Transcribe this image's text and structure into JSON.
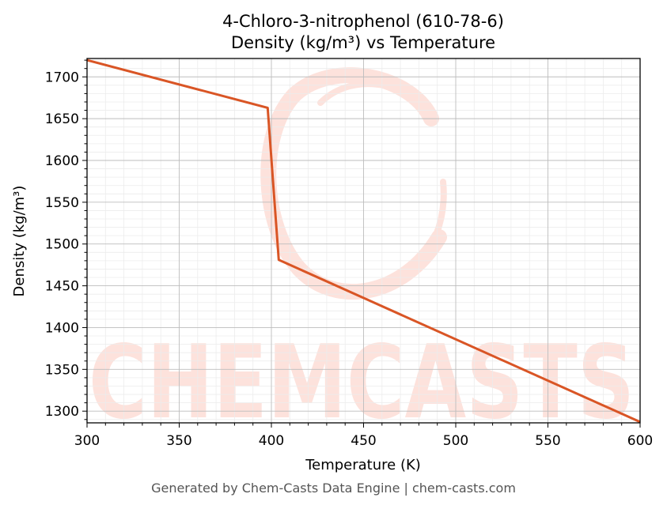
{
  "chart_data": {
    "type": "line",
    "title_line1": "4-Chloro-3-nitrophenol (610-78-6)",
    "title_line2": "Density (kg/m³) vs Temperature",
    "xlabel": "Temperature (K)",
    "ylabel": "Density (kg/m³)",
    "xlim": [
      300,
      600
    ],
    "ylim": [
      1286,
      1722
    ],
    "xticks": [
      300,
      350,
      400,
      450,
      500,
      550,
      600
    ],
    "yticks": [
      1300,
      1350,
      1400,
      1450,
      1500,
      1550,
      1600,
      1650,
      1700
    ],
    "grid": true,
    "line_color": "#d95525",
    "series": [
      {
        "x": [
          300,
          398,
          404,
          600
        ],
        "values": [
          1720,
          1663,
          1481,
          1287
        ]
      }
    ]
  },
  "watermark": {
    "text": "CHEMCASTS",
    "color": "#fde2dc"
  },
  "footer": "Generated by Chem-Casts Data Engine | chem-casts.com"
}
